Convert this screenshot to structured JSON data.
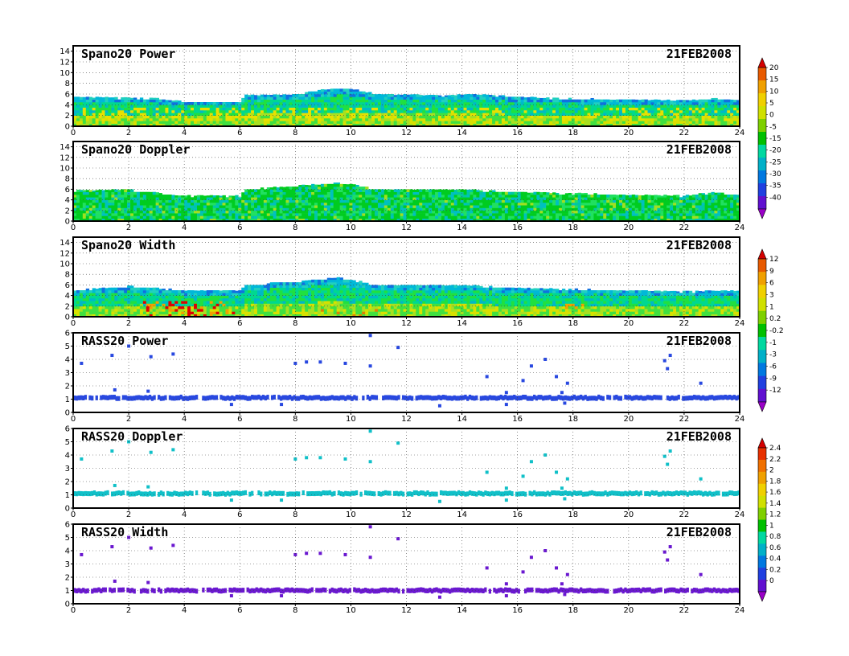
{
  "figure_date": "21FEB2008",
  "colorbars": [
    {
      "for": "power-doppler",
      "labels": [
        "20",
        "15",
        "10",
        "5",
        "0",
        "-5",
        "-15",
        "-20",
        "-25",
        "-30",
        "-35",
        "-40"
      ],
      "colors": [
        "#d40000",
        "#e85a00",
        "#f0a000",
        "#f0d000",
        "#d0e000",
        "#7ed000",
        "#00c000",
        "#00d8a0",
        "#00b0c8",
        "#0078e0",
        "#2040e0",
        "#6010d0",
        "#9a00c8"
      ]
    },
    {
      "for": "width-rass-power",
      "labels": [
        "12",
        "9",
        "6",
        "3",
        "1",
        "0.2",
        "-0.2",
        "-1",
        "-3",
        "-6",
        "-9",
        "-12"
      ],
      "colors": [
        "#d40000",
        "#e85a00",
        "#f0a000",
        "#f0d000",
        "#d0e000",
        "#7ed000",
        "#00c000",
        "#00d8a0",
        "#00b0c8",
        "#0078e0",
        "#2040e0",
        "#6010d0",
        "#9a00c8"
      ]
    },
    {
      "for": "rass-doppler-width",
      "labels": [
        "2.4",
        "2.2",
        "2",
        "1.8",
        "1.6",
        "1.4",
        "1.2",
        "1",
        "0.8",
        "0.6",
        "0.4",
        "0.2",
        "0"
      ],
      "colors": [
        "#d40000",
        "#e83000",
        "#f07000",
        "#f0a000",
        "#f0d000",
        "#d0e000",
        "#80d000",
        "#00c000",
        "#00d8a0",
        "#00b0c8",
        "#0078e0",
        "#2040e0",
        "#6010d0",
        "#9a00c8"
      ]
    }
  ],
  "chart_data": [
    {
      "type": "heatmap",
      "title": "Spano20 Power",
      "date": "21FEB2008",
      "x_range": [
        0,
        24
      ],
      "y_range": [
        0,
        15
      ],
      "x_ticks": [
        0,
        2,
        4,
        6,
        8,
        10,
        12,
        14,
        16,
        18,
        20,
        22,
        24
      ],
      "y_ticks": [
        0,
        2,
        4,
        6,
        8,
        10,
        12,
        14
      ],
      "grid": true,
      "echo_top": [
        [
          0,
          5.5
        ],
        [
          3,
          5.2
        ],
        [
          4,
          4.6
        ],
        [
          6,
          4.6
        ],
        [
          6.2,
          5.8
        ],
        [
          8,
          6.0
        ],
        [
          9.5,
          7.2
        ],
        [
          10,
          7.0
        ],
        [
          11,
          6.0
        ],
        [
          13,
          5.8
        ],
        [
          14.5,
          6.0
        ],
        [
          16,
          5.5
        ],
        [
          18,
          5.2
        ],
        [
          20,
          5.0
        ],
        [
          22,
          4.8
        ],
        [
          23,
          5.2
        ],
        [
          24,
          5.0
        ]
      ],
      "dominant": "cyan-green",
      "speckle": "yellow"
    },
    {
      "type": "heatmap",
      "title": "Spano20 Doppler",
      "date": "21FEB2008",
      "x_range": [
        0,
        24
      ],
      "y_range": [
        0,
        15
      ],
      "x_ticks": [
        0,
        2,
        4,
        6,
        8,
        10,
        12,
        14,
        16,
        18,
        20,
        22,
        24
      ],
      "y_ticks": [
        0,
        2,
        4,
        6,
        8,
        10,
        12,
        14
      ],
      "grid": true,
      "echo_top": [
        [
          0,
          5.8
        ],
        [
          2,
          6.0
        ],
        [
          4,
          4.8
        ],
        [
          6,
          4.8
        ],
        [
          6.2,
          6.0
        ],
        [
          9.5,
          7.2
        ],
        [
          10,
          7.0
        ],
        [
          11,
          6.0
        ],
        [
          14,
          6.0
        ],
        [
          16,
          5.5
        ],
        [
          20,
          5.0
        ],
        [
          22,
          4.8
        ],
        [
          23,
          5.4
        ],
        [
          24,
          5.0
        ]
      ],
      "dominant": "green",
      "speckle": "cyan"
    },
    {
      "type": "heatmap",
      "title": "Spano20 Width",
      "date": "21FEB2008",
      "x_range": [
        0,
        24
      ],
      "y_range": [
        0,
        15
      ],
      "x_ticks": [
        0,
        2,
        4,
        6,
        8,
        10,
        12,
        14,
        16,
        18,
        20,
        22,
        24
      ],
      "y_ticks": [
        0,
        2,
        4,
        6,
        8,
        10,
        12,
        14
      ],
      "grid": true,
      "echo_top": [
        [
          0,
          5.0
        ],
        [
          2,
          5.8
        ],
        [
          4,
          5.0
        ],
        [
          6,
          5.0
        ],
        [
          6.2,
          6.0
        ],
        [
          9.5,
          7.4
        ],
        [
          10,
          7.0
        ],
        [
          11,
          6.0
        ],
        [
          14,
          6.0
        ],
        [
          16,
          5.5
        ],
        [
          20,
          5.0
        ],
        [
          22,
          4.8
        ],
        [
          24,
          5.0
        ]
      ],
      "dominant": "cyan-green",
      "speckle": "red"
    },
    {
      "type": "scatter",
      "title": "RASS20 Power",
      "date": "21FEB2008",
      "x_range": [
        0,
        24
      ],
      "y_range": [
        0,
        6
      ],
      "x_ticks": [
        0,
        2,
        4,
        6,
        8,
        10,
        12,
        14,
        16,
        18,
        20,
        22,
        24
      ],
      "y_ticks": [
        0,
        1,
        2,
        3,
        4,
        5,
        6
      ],
      "grid": true,
      "band_y": 1.1,
      "band_color": "#2848e0",
      "band_gap": [
        4.4,
        4.6
      ],
      "points": [
        [
          0.3,
          3.7
        ],
        [
          1.4,
          4.3
        ],
        [
          2.0,
          5.0
        ],
        [
          2.8,
          4.2
        ],
        [
          3.6,
          4.4
        ],
        [
          8.0,
          3.7
        ],
        [
          8.4,
          3.8
        ],
        [
          8.9,
          3.8
        ],
        [
          9.8,
          3.7
        ],
        [
          10.7,
          5.8
        ],
        [
          10.7,
          3.5
        ],
        [
          11.7,
          4.9
        ],
        [
          14.9,
          2.7
        ],
        [
          15.6,
          1.5
        ],
        [
          16.2,
          2.4
        ],
        [
          16.5,
          3.5
        ],
        [
          17.0,
          4.0
        ],
        [
          17.4,
          2.7
        ],
        [
          17.6,
          1.5
        ],
        [
          17.8,
          2.2
        ],
        [
          21.3,
          3.9
        ],
        [
          21.4,
          3.3
        ],
        [
          21.5,
          4.3
        ],
        [
          22.6,
          2.2
        ],
        [
          1.5,
          1.7
        ],
        [
          2.7,
          1.6
        ],
        [
          5.7,
          0.6
        ],
        [
          7.5,
          0.6
        ],
        [
          13.2,
          0.5
        ],
        [
          15.6,
          0.6
        ],
        [
          17.7,
          0.7
        ]
      ]
    },
    {
      "type": "scatter",
      "title": "RASS20 Doppler",
      "date": "21FEB2008",
      "x_range": [
        0,
        24
      ],
      "y_range": [
        0,
        6
      ],
      "x_ticks": [
        0,
        2,
        4,
        6,
        8,
        10,
        12,
        14,
        16,
        18,
        20,
        22,
        24
      ],
      "y_ticks": [
        0,
        1,
        2,
        3,
        4,
        5,
        6
      ],
      "grid": true,
      "band_y": 1.1,
      "band_color": "#10c0c8",
      "band_gap": [
        4.4,
        4.6
      ],
      "points": [
        [
          0.3,
          3.7
        ],
        [
          1.4,
          4.3
        ],
        [
          2.0,
          5.0
        ],
        [
          2.8,
          4.2
        ],
        [
          3.6,
          4.4
        ],
        [
          8.0,
          3.7
        ],
        [
          8.4,
          3.8
        ],
        [
          8.9,
          3.8
        ],
        [
          9.8,
          3.7
        ],
        [
          10.7,
          5.8
        ],
        [
          10.7,
          3.5
        ],
        [
          11.7,
          4.9
        ],
        [
          14.9,
          2.7
        ],
        [
          15.6,
          1.5
        ],
        [
          16.2,
          2.4
        ],
        [
          16.5,
          3.5
        ],
        [
          17.0,
          4.0
        ],
        [
          17.4,
          2.7
        ],
        [
          17.6,
          1.5
        ],
        [
          17.8,
          2.2
        ],
        [
          21.3,
          3.9
        ],
        [
          21.4,
          3.3
        ],
        [
          21.5,
          4.3
        ],
        [
          22.6,
          2.2
        ],
        [
          1.5,
          1.7
        ],
        [
          2.7,
          1.6
        ],
        [
          5.7,
          0.6
        ],
        [
          7.5,
          0.6
        ],
        [
          13.2,
          0.5
        ],
        [
          15.6,
          0.6
        ],
        [
          17.7,
          0.7
        ]
      ]
    },
    {
      "type": "scatter",
      "title": "RASS20 Width",
      "date": "21FEB2008",
      "x_range": [
        0,
        24
      ],
      "y_range": [
        0,
        6
      ],
      "x_ticks": [
        0,
        2,
        4,
        6,
        8,
        10,
        12,
        14,
        16,
        18,
        20,
        22,
        24
      ],
      "y_ticks": [
        0,
        1,
        2,
        3,
        4,
        5,
        6
      ],
      "grid": true,
      "band_y": 1.0,
      "band_color": "#6a18d0",
      "band_gap": [
        4.4,
        4.6
      ],
      "points": [
        [
          0.3,
          3.7
        ],
        [
          1.4,
          4.3
        ],
        [
          2.0,
          5.0
        ],
        [
          2.8,
          4.2
        ],
        [
          3.6,
          4.4
        ],
        [
          8.0,
          3.7
        ],
        [
          8.4,
          3.8
        ],
        [
          8.9,
          3.8
        ],
        [
          9.8,
          3.7
        ],
        [
          10.7,
          5.8
        ],
        [
          10.7,
          3.5
        ],
        [
          11.7,
          4.9
        ],
        [
          14.9,
          2.7
        ],
        [
          15.6,
          1.5
        ],
        [
          16.2,
          2.4
        ],
        [
          16.5,
          3.5
        ],
        [
          17.0,
          4.0
        ],
        [
          17.4,
          2.7
        ],
        [
          17.6,
          1.5
        ],
        [
          17.8,
          2.2
        ],
        [
          21.3,
          3.9
        ],
        [
          21.4,
          3.3
        ],
        [
          21.5,
          4.3
        ],
        [
          22.6,
          2.2
        ],
        [
          1.5,
          1.7
        ],
        [
          2.7,
          1.6
        ],
        [
          5.7,
          0.6
        ],
        [
          7.5,
          0.6
        ],
        [
          13.2,
          0.5
        ],
        [
          15.6,
          0.6
        ],
        [
          17.7,
          0.7
        ]
      ]
    }
  ]
}
